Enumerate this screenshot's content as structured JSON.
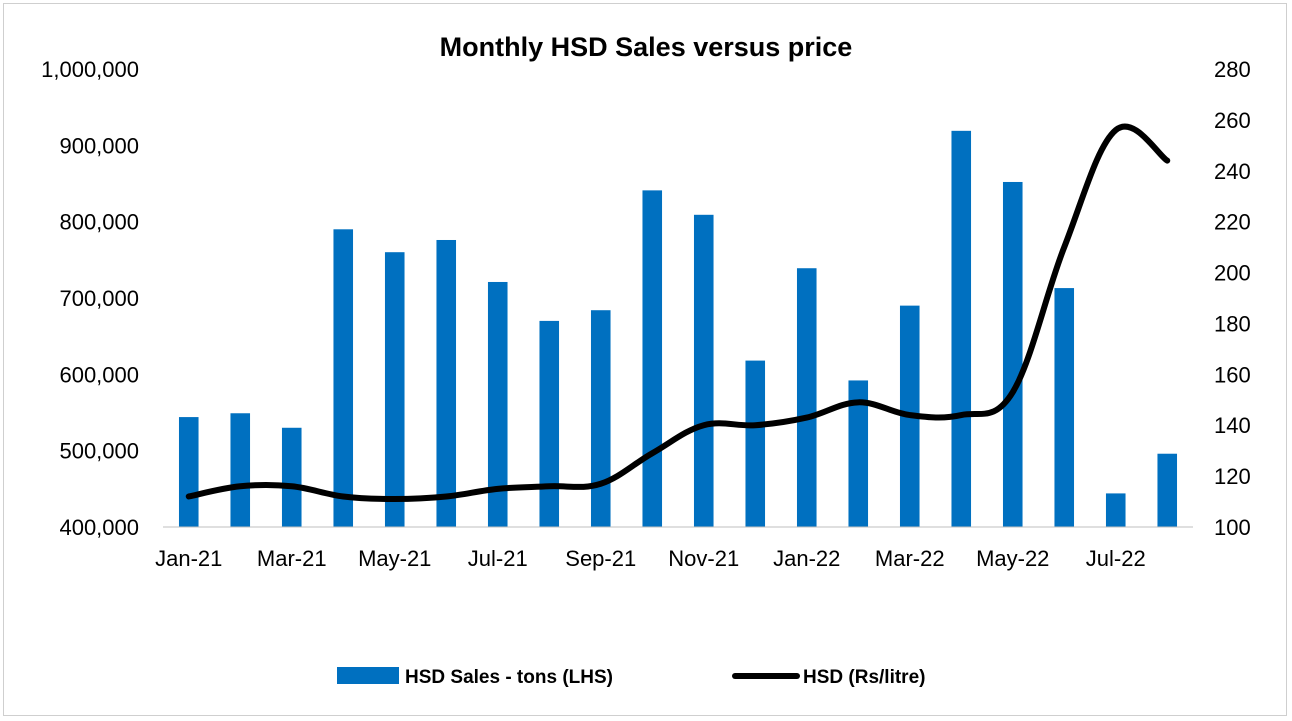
{
  "chart_data": {
    "type": "bar",
    "title": "Monthly HSD Sales versus price",
    "categories": [
      "Jan-21",
      "Feb-21",
      "Mar-21",
      "Apr-21",
      "May-21",
      "Jun-21",
      "Jul-21",
      "Aug-21",
      "Sep-21",
      "Oct-21",
      "Nov-21",
      "Dec-21",
      "Jan-22",
      "Feb-22",
      "Mar-22",
      "Apr-22",
      "May-22",
      "Jun-22",
      "Jul-22",
      "Aug-22"
    ],
    "x_tick_labels": [
      "Jan-21",
      "Mar-21",
      "May-21",
      "Jul-21",
      "Sep-21",
      "Nov-21",
      "Jan-22",
      "Mar-22",
      "May-22",
      "Jul-22"
    ],
    "series": [
      {
        "name": "HSD Sales - tons (LHS)",
        "type": "bar",
        "axis": "left",
        "color": "#0070C0",
        "values": [
          544000,
          549000,
          530000,
          790000,
          760000,
          776000,
          721000,
          670000,
          684000,
          841000,
          809000,
          618000,
          739000,
          592000,
          690000,
          919000,
          852000,
          713000,
          444000,
          496000
        ]
      },
      {
        "name": "HSD (Rs/litre)",
        "type": "line",
        "axis": "right",
        "color": "#000000",
        "smooth": true,
        "values": [
          112,
          116,
          116,
          112,
          111,
          112,
          115,
          116,
          117,
          129,
          140,
          140,
          143,
          149,
          144,
          144,
          153,
          210,
          256,
          244
        ]
      }
    ],
    "y_left": {
      "min": 400000,
      "max": 1000000,
      "ticks": [
        "400,000",
        "500,000",
        "600,000",
        "700,000",
        "800,000",
        "900,000",
        "1,000,000"
      ]
    },
    "y_right": {
      "min": 100,
      "max": 280,
      "ticks": [
        "100",
        "120",
        "140",
        "160",
        "180",
        "200",
        "220",
        "240",
        "260",
        "280"
      ]
    },
    "grid": false,
    "legend_position": "bottom"
  }
}
